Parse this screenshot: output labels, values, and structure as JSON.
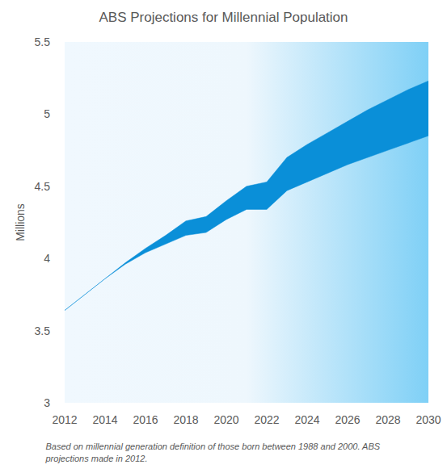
{
  "chart_data": {
    "type": "band",
    "title": "ABS Projections for Millennial Population",
    "y_label": "Millions",
    "caption": "Based on millennial generation definition of those born between 1988 and 2000. ABS projections made in 2012.",
    "x": [
      2012,
      2013,
      2014,
      2015,
      2016,
      2017,
      2018,
      2019,
      2020,
      2021,
      2022,
      2023,
      2024,
      2025,
      2026,
      2027,
      2028,
      2029,
      2030
    ],
    "low": [
      3.64,
      3.75,
      3.86,
      3.96,
      4.04,
      4.1,
      4.16,
      4.18,
      4.27,
      4.34,
      4.34,
      4.47,
      4.53,
      4.59,
      4.65,
      4.7,
      4.75,
      4.8,
      4.85
    ],
    "high": [
      3.64,
      3.75,
      3.86,
      3.97,
      4.07,
      4.16,
      4.26,
      4.29,
      4.4,
      4.5,
      4.53,
      4.7,
      4.79,
      4.87,
      4.95,
      5.03,
      5.1,
      5.17,
      5.23
    ],
    "color": "#0a8fd8",
    "xlim": [
      2012,
      2030
    ],
    "xticks": [
      2012,
      2014,
      2016,
      2018,
      2020,
      2022,
      2024,
      2026,
      2028,
      2030
    ],
    "ylim": [
      3,
      5.5
    ],
    "yticks": [
      3,
      3.5,
      4,
      4.5,
      5,
      5.5
    ],
    "grid": false
  }
}
